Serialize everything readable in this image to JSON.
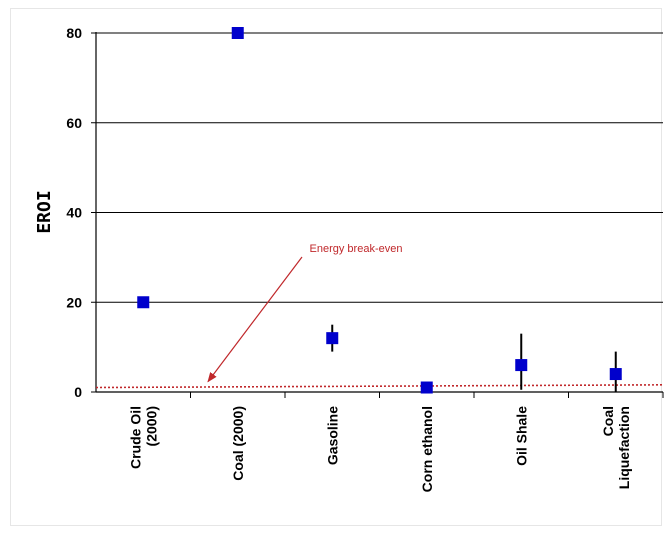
{
  "chart_data": {
    "type": "scatter",
    "title": "",
    "xlabel": "",
    "ylabel": "EROI",
    "ylim": [
      0,
      80
    ],
    "yticks": [
      0,
      20,
      40,
      60,
      80
    ],
    "grid": "horizontal",
    "categories": [
      [
        "Crude Oil",
        "(2000)"
      ],
      [
        "Coal (2000)"
      ],
      [
        "Gasoline"
      ],
      [
        "Corn ethanol"
      ],
      [
        "Oil Shale"
      ],
      [
        "Coal",
        "Liquefaction"
      ]
    ],
    "points": [
      {
        "value": 20,
        "err_low": 20,
        "err_high": 20
      },
      {
        "value": 80,
        "err_low": 80,
        "err_high": 80
      },
      {
        "value": 12,
        "err_low": 9,
        "err_high": 15
      },
      {
        "value": 1,
        "err_low": 0.8,
        "err_high": 1.6
      },
      {
        "value": 6,
        "err_low": 0.5,
        "err_high": 13
      },
      {
        "value": 4,
        "err_low": 0,
        "err_high": 9
      }
    ],
    "marker_color": "#0000cc",
    "break_even": {
      "label": "Energy break-even",
      "start": 1.0,
      "end": 1.6,
      "color": "#c0282b"
    }
  }
}
